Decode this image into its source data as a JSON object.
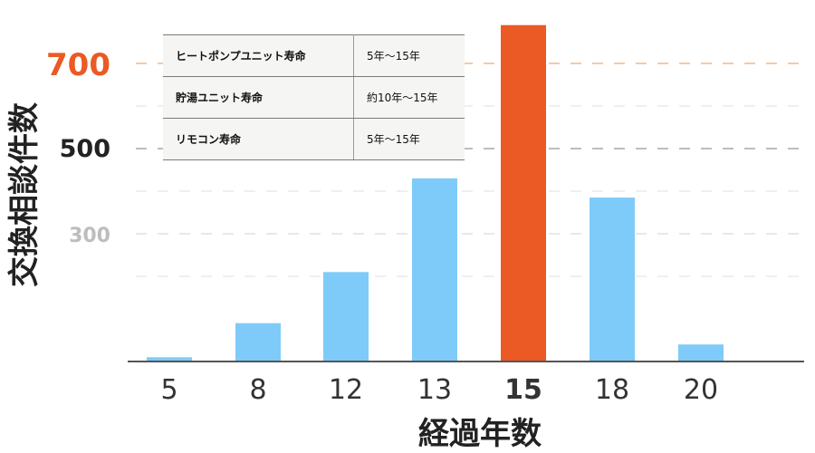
{
  "chart_data": {
    "type": "bar",
    "title": "",
    "xlabel": "経過年数",
    "ylabel": "交換相談件数",
    "categories": [
      "5",
      "8",
      "12",
      "13",
      "15",
      "18",
      "20"
    ],
    "values": [
      10,
      90,
      210,
      430,
      790,
      385,
      40
    ],
    "highlight_category": "15",
    "ylim": [
      0,
      800
    ],
    "yticks": [
      {
        "value": 300,
        "label": "300",
        "color": "#bdbdbd",
        "line_color": "#e8e8e8"
      },
      {
        "value": 500,
        "label": "500",
        "color": "#222222",
        "line_color": "#bdbdbd"
      },
      {
        "value": 700,
        "label": "700",
        "color": "#eb5a24",
        "line_color": "#f6c9a8"
      }
    ],
    "grid": true,
    "colors": {
      "bar": "#7ecbf9",
      "highlight": "#eb5a24",
      "highlight_label": "#eb5a24",
      "axis": "#555555"
    }
  },
  "lifetime_table": [
    {
      "item": "ヒートポンプユニット寿命",
      "value": "5年～15年"
    },
    {
      "item": "貯湯ユニット寿命",
      "value": "約10年～15年"
    },
    {
      "item": "リモコン寿命",
      "value": "5年～15年"
    }
  ]
}
